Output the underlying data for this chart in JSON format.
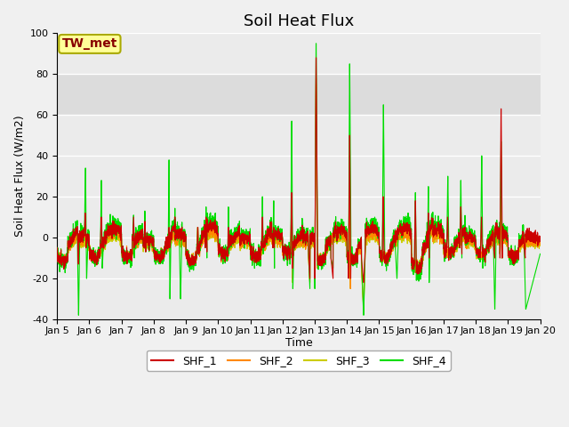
{
  "title": "Soil Heat Flux",
  "xlabel": "Time",
  "ylabel": "Soil Heat Flux (W/m2)",
  "ylim": [
    -40,
    100
  ],
  "yticks": [
    -40,
    -20,
    0,
    20,
    40,
    60,
    80,
    100
  ],
  "xtick_labels": [
    "Jan 5",
    "Jan 6",
    "Jan 7",
    "Jan 8",
    "Jan 9",
    "Jan 10",
    "Jan 11",
    "Jan 12",
    "Jan 13",
    "Jan 14",
    "Jan 15",
    "Jan 16",
    "Jan 17",
    "Jan 18",
    "Jan 19",
    "Jan 20"
  ],
  "legend_labels": [
    "SHF_1",
    "SHF_2",
    "SHF_3",
    "SHF_4"
  ],
  "line_colors": [
    "#cc0000",
    "#ff8800",
    "#cccc00",
    "#00dd00"
  ],
  "annotation_text": "TW_met",
  "annotation_bg": "#ffff99",
  "annotation_border": "#aaaa00",
  "annotation_text_color": "#880000",
  "shaded_region": [
    60,
    80
  ],
  "shaded_color": "#dcdcdc",
  "background_color": "#ebebeb",
  "grid_color": "#ffffff",
  "title_fontsize": 13,
  "label_fontsize": 9,
  "tick_fontsize": 8,
  "legend_fontsize": 9
}
